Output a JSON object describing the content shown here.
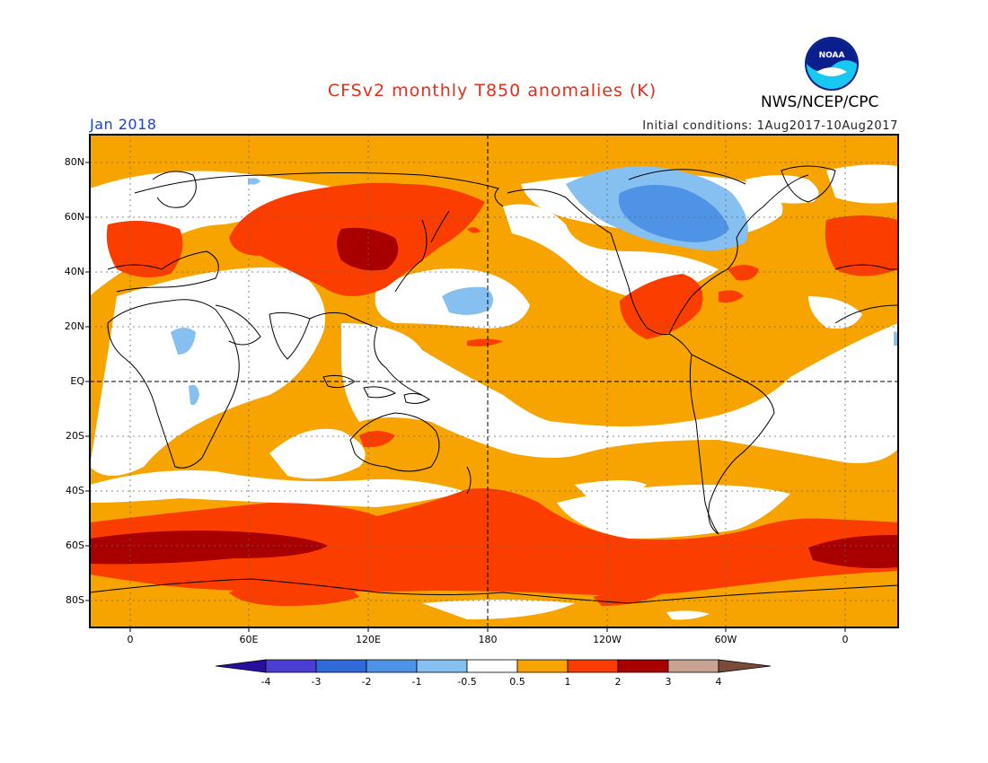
{
  "header": {
    "title": "CFSv2 monthly T850 anomalies (K)",
    "agency": "NWS/NCEP/CPC",
    "valid_period": "Jan 2018",
    "initial_conditions": "Initial conditions: 1Aug2017-10Aug2017",
    "logo": "noaa-logo"
  },
  "map": {
    "lat_labels": [
      "80N",
      "60N",
      "40N",
      "20N",
      "EQ",
      "20S",
      "40S",
      "60S",
      "80S"
    ],
    "lon_labels": [
      "0",
      "60E",
      "120E",
      "180",
      "120W",
      "60W",
      "0"
    ]
  },
  "colorbar": {
    "labels": [
      "-4",
      "-3",
      "-2",
      "-1",
      "-0.5",
      "0.5",
      "1",
      "2",
      "3",
      "4"
    ],
    "colors": [
      "#2a0f9e",
      "#4a3fd0",
      "#2f6ad6",
      "#4f93e6",
      "#86c0f0",
      "#ffffff",
      "#f7a400",
      "#fb3e00",
      "#a80000",
      "#c9a291",
      "#7a4a3a"
    ]
  },
  "colors": {
    "title": "#e0301e",
    "period": "#1a3fd6",
    "orange": "#f7a400",
    "red": "#fb3e00",
    "darkred": "#a80000",
    "lightblue": "#86c0f0",
    "blue": "#4f93e6"
  }
}
